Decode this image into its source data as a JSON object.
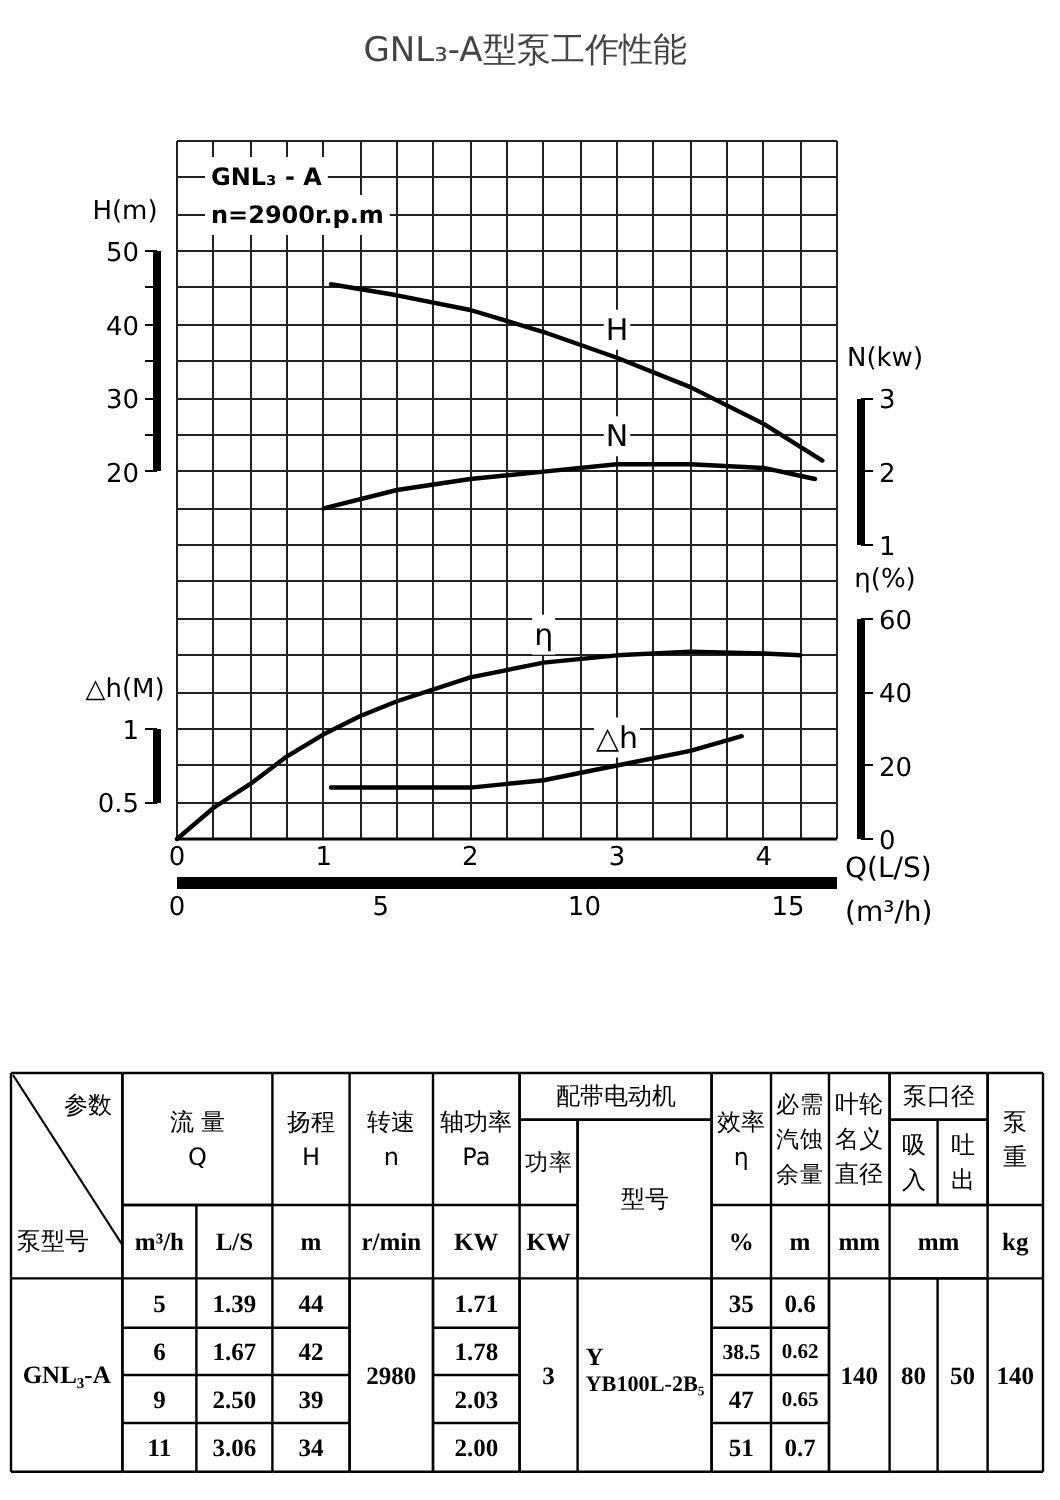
{
  "chart_data": [
    {
      "type": "line",
      "title": "GNL₃-A型泵工作性能",
      "xlabel": "Q(L/S)",
      "x2label": "(m³/h)",
      "ylabel": "H(m)",
      "y2label": "N(kw)",
      "y3label": "η(%)",
      "annotations": [
        "GNL₃ - A",
        "n=2900r.p.m"
      ],
      "xlim": [
        0,
        4.5
      ],
      "xticks": [
        0,
        {
          "value": 0.25,
          "label": null
        },
        {
          "value": 0.5,
          "label": null
        },
        {
          "value": 0.75,
          "label": null
        },
        1,
        {
          "value": 1.25,
          "label": null
        },
        {
          "value": 1.5,
          "label": null
        },
        {
          "value": 1.75,
          "label": null
        },
        2,
        {
          "value": 2.25,
          "label": null
        },
        {
          "value": 2.5,
          "label": null
        },
        {
          "value": 2.75,
          "label": null
        },
        3,
        {
          "value": 3.25,
          "label": null
        },
        {
          "value": 3.5,
          "label": null
        },
        {
          "value": 3.75,
          "label": null
        },
        4,
        {
          "value": 4.25,
          "label": null
        }
      ],
      "x2lim": [
        0,
        16.2
      ],
      "x2ticks": [
        0,
        5,
        10,
        15
      ],
      "ylim": [
        -30,
        65
      ],
      "yticks": [
        {
          "value": -25,
          "label": null
        },
        {
          "value": -20,
          "label": null
        },
        {
          "value": -15,
          "label": null
        },
        {
          "value": -10,
          "label": null
        },
        {
          "value": -5,
          "label": null
        },
        {
          "value": 0,
          "label": null
        },
        {
          "value": 5,
          "label": null
        },
        {
          "value": 10,
          "label": null
        },
        {
          "value": 15,
          "label": null
        },
        20,
        {
          "value": 25,
          "label": null
        },
        30,
        {
          "value": 35,
          "label": null
        },
        40,
        {
          "value": 45,
          "label": null
        },
        50,
        {
          "value": 55,
          "label": null
        },
        {
          "value": 60,
          "label": null
        }
      ],
      "y2lim": [
        -3,
        6.5
      ],
      "y2ticks": [
        1,
        2,
        3
      ],
      "y3lim": [
        0,
        190
      ],
      "y3ticks": [
        0,
        20,
        40,
        60
      ],
      "grid": true,
      "series": [
        {
          "name": "H",
          "color": "#000000",
          "x": [
            1.05,
            1.5,
            2,
            2.5,
            3,
            3.5,
            4,
            4.4
          ],
          "values": [
            45.5,
            44,
            42,
            39,
            35.5,
            31.5,
            26.5,
            21.5
          ]
        },
        {
          "name": "N",
          "color": "#000000",
          "axis": "y2",
          "x": [
            1.0,
            1.5,
            2,
            2.5,
            3,
            3.5,
            4,
            4.35
          ],
          "values": [
            1.5,
            1.75,
            1.9,
            2.0,
            2.1,
            2.1,
            2.05,
            1.9
          ]
        },
        {
          "name": "η",
          "color": "#000000",
          "axis": "y3",
          "x": [
            0,
            0.25,
            0.5,
            0.75,
            1,
            1.25,
            1.5,
            2,
            2.5,
            3,
            3.5,
            4,
            4.25
          ],
          "values": [
            0,
            8.5,
            15,
            22.5,
            28.5,
            33.5,
            37.5,
            44,
            48,
            50,
            51,
            50.5,
            50
          ]
        }
      ]
    },
    {
      "type": "line",
      "ylabel": "△h(M)",
      "xlim": [
        0,
        4.5
      ],
      "ylim": [
        0.25,
        5
      ],
      "yticks": [
        0.5,
        1
      ],
      "tick_labels": "y",
      "series": [
        {
          "name": "△h",
          "color": "#000000",
          "x": [
            1.05,
            1.5,
            2,
            2.5,
            3,
            3.5,
            3.85
          ],
          "values": [
            0.6,
            0.6,
            0.6,
            0.65,
            0.75,
            0.85,
            0.95
          ]
        }
      ]
    },
    {
      "type": "other",
      "annotations": [
        "参数",
        "流 量\nQ",
        "扬程\nH",
        "转速\nn",
        "轴功率\nPa",
        "配带电动机",
        "效率\nη",
        "必需汽蚀余量",
        "叶轮名义直径",
        "泵口径",
        "泵重",
        "功率",
        "型号",
        "吸入",
        "吐出",
        "泵型号",
        "m³/h",
        "L/S",
        "m",
        "r/min",
        "KW",
        "KW",
        "%",
        "m",
        "mm",
        "mm",
        "kg",
        "GNL₃-A",
        "5",
        "1.39",
        "44",
        "2980",
        "1.71",
        "3",
        "Y",
        "YB100L-2B₅",
        "35",
        "0.6",
        "140",
        "80",
        "50",
        "140",
        "6",
        "1.67",
        "42",
        "1.78",
        "38.5",
        "0.62",
        "9",
        "2.50",
        "39",
        "2.03",
        "47",
        "0.65",
        "11",
        "3.06",
        "34",
        "2.00",
        "51",
        "0.7"
      ]
    }
  ]
}
